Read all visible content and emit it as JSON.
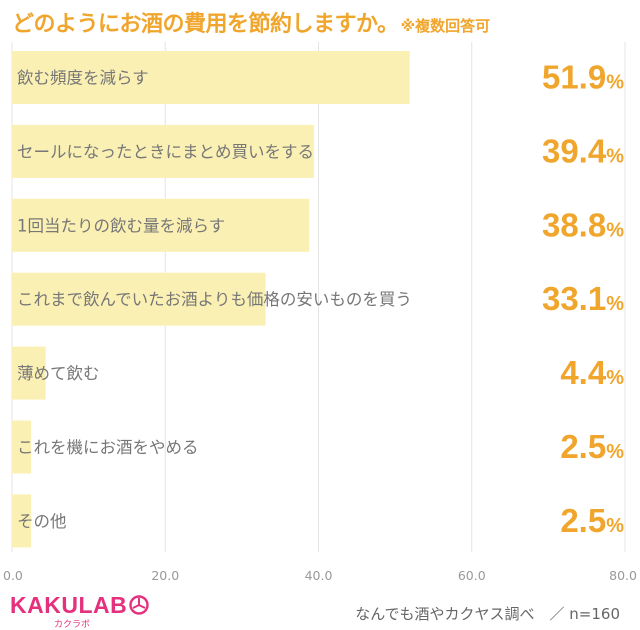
{
  "header": {
    "title": "どのようにお酒の費用を節約しますか。",
    "note": "※複数回答可"
  },
  "chart_data": {
    "type": "bar",
    "orientation": "horizontal",
    "categories": [
      "飲む頻度を減らす",
      "セールになったときにまとめ買いをする",
      "1回当たりの飲む量を減らす",
      "これまで飲んでいたお酒よりも価格の安いものを買う",
      "薄めて飲む",
      "これを機にお酒をやめる",
      "その他"
    ],
    "values": [
      51.9,
      39.4,
      38.8,
      33.1,
      4.4,
      2.5,
      2.5
    ],
    "value_labels": [
      "51.9",
      "39.4",
      "38.8",
      "33.1",
      "4.4",
      "2.5",
      "2.5"
    ],
    "value_unit": "%",
    "xlim": [
      0,
      80
    ],
    "x_ticks": [
      "0.0",
      "20.0",
      "40.0",
      "60.0",
      "80.0"
    ],
    "grid": true,
    "colors": {
      "bar": "#fbf0b4",
      "value": "#f0a52c",
      "grid": "#e4e4e4",
      "label": "#777777"
    }
  },
  "footer": {
    "logo_text": "KAKULAB",
    "logo_sub": "カクラボ",
    "source": "なんでも酒やカクヤス調べ　／ n=160"
  }
}
